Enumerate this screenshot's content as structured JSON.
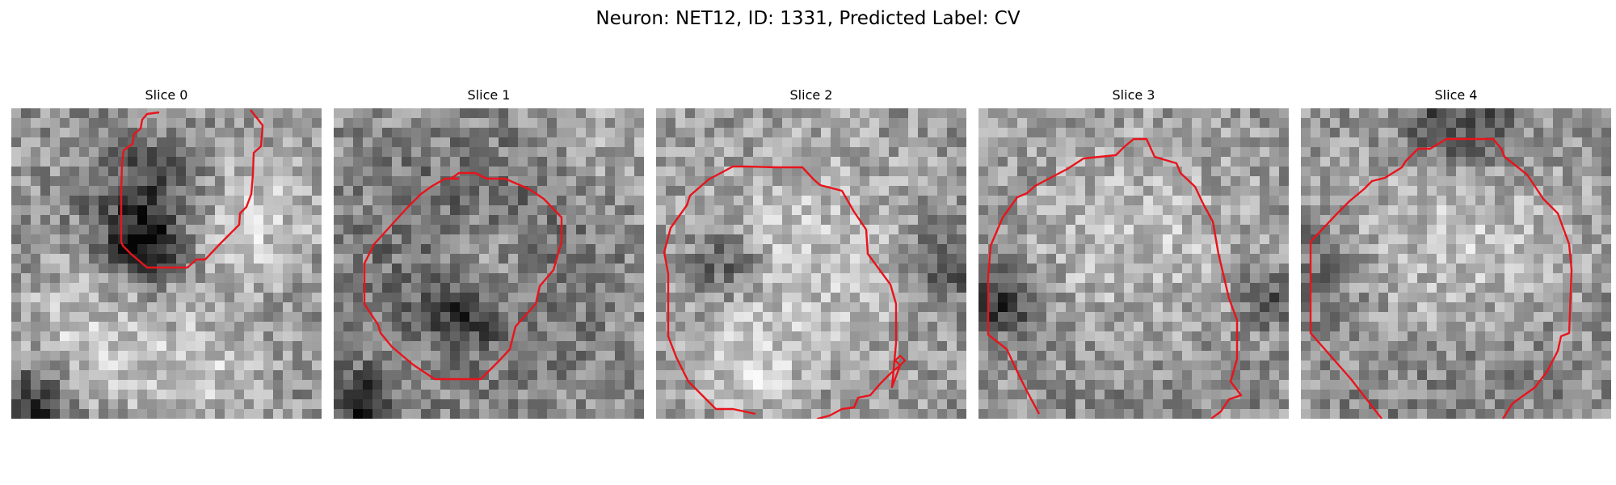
{
  "title": "Neuron: NET12, ID: 1331, Predicted Label: CV",
  "contour_color": "#e8141c",
  "slices": [
    {
      "label": "Slice 0"
    },
    {
      "label": "Slice 1"
    },
    {
      "label": "Slice 2"
    },
    {
      "label": "Slice 3"
    },
    {
      "label": "Slice 4"
    }
  ]
}
